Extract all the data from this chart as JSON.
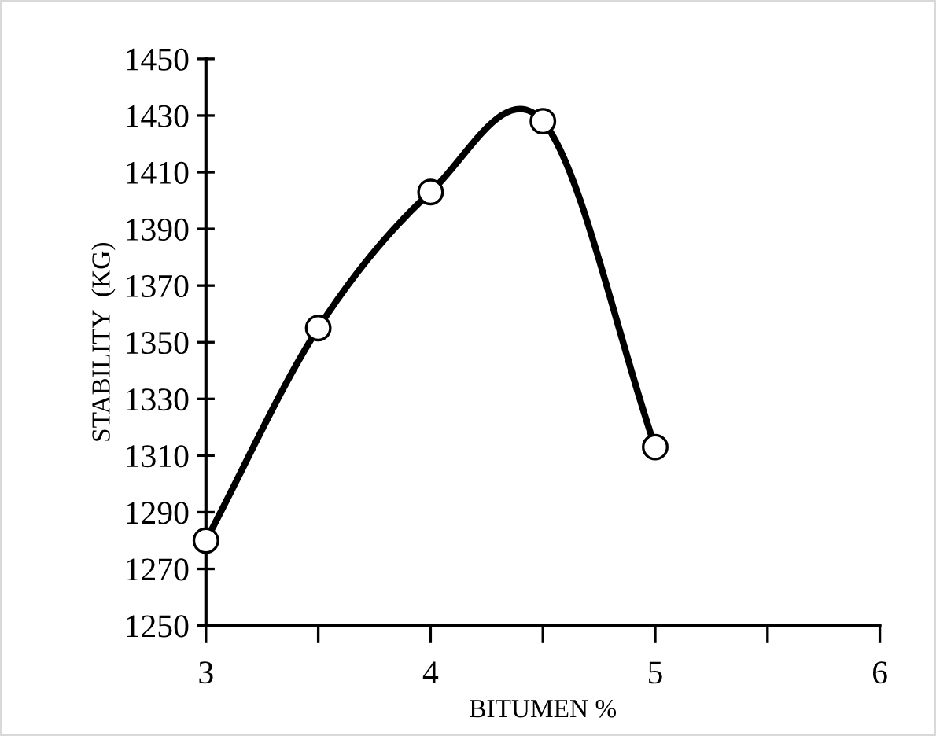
{
  "chart_data": {
    "type": "line",
    "xlabel": "BITUMEN %",
    "ylabel": "STABILITY  (KG)",
    "x": [
      3,
      3.5,
      4,
      4.5,
      5
    ],
    "series": [
      {
        "color": "#000000",
        "values": [
          1280,
          1355,
          1403,
          1428,
          1313
        ]
      }
    ],
    "xlim": [
      3,
      6
    ],
    "xticks": [
      3,
      {
        "value": 3.5,
        "label": null
      },
      4,
      {
        "value": 4.5,
        "label": null
      },
      5,
      {
        "value": 5.5,
        "label": null
      },
      6
    ],
    "ylim": [
      1250,
      1450
    ],
    "yticks": [
      1250,
      1270,
      1290,
      1310,
      1330,
      1350,
      1370,
      1390,
      1410,
      1430,
      1450
    ],
    "marker": "circle",
    "line_style": "solid",
    "grid": false,
    "legend": false
  }
}
